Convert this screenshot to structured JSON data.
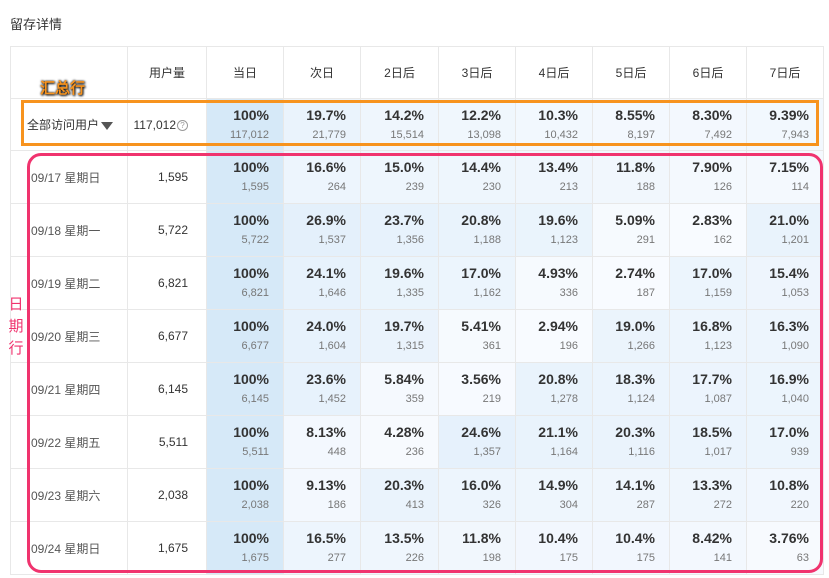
{
  "page_title": "留存详情",
  "headers": {
    "label": "",
    "users": "用户量",
    "days": [
      "当日",
      "次日",
      "2日后",
      "3日后",
      "4日后",
      "5日后",
      "6日后",
      "7日后"
    ]
  },
  "summary": {
    "label": "全部访问用户",
    "users": "117,012",
    "help_icon": "question-circle-icon",
    "dropdown_icon": "triangle-down-icon",
    "cells": [
      {
        "pct": "100%",
        "cnt": "117,012"
      },
      {
        "pct": "19.7%",
        "cnt": "21,779"
      },
      {
        "pct": "14.2%",
        "cnt": "15,514"
      },
      {
        "pct": "12.2%",
        "cnt": "13,098"
      },
      {
        "pct": "10.3%",
        "cnt": "10,432"
      },
      {
        "pct": "8.55%",
        "cnt": "8,197"
      },
      {
        "pct": "8.30%",
        "cnt": "7,492"
      },
      {
        "pct": "9.39%",
        "cnt": "7,943"
      }
    ]
  },
  "rows": [
    {
      "label": "09/17 星期日",
      "users": "1,595",
      "cells": [
        {
          "pct": "100%",
          "cnt": "1,595"
        },
        {
          "pct": "16.6%",
          "cnt": "264"
        },
        {
          "pct": "15.0%",
          "cnt": "239"
        },
        {
          "pct": "14.4%",
          "cnt": "230"
        },
        {
          "pct": "13.4%",
          "cnt": "213"
        },
        {
          "pct": "11.8%",
          "cnt": "188"
        },
        {
          "pct": "7.90%",
          "cnt": "126"
        },
        {
          "pct": "7.15%",
          "cnt": "114"
        }
      ]
    },
    {
      "label": "09/18 星期一",
      "users": "5,722",
      "cells": [
        {
          "pct": "100%",
          "cnt": "5,722"
        },
        {
          "pct": "26.9%",
          "cnt": "1,537"
        },
        {
          "pct": "23.7%",
          "cnt": "1,356"
        },
        {
          "pct": "20.8%",
          "cnt": "1,188"
        },
        {
          "pct": "19.6%",
          "cnt": "1,123"
        },
        {
          "pct": "5.09%",
          "cnt": "291"
        },
        {
          "pct": "2.83%",
          "cnt": "162"
        },
        {
          "pct": "21.0%",
          "cnt": "1,201"
        }
      ]
    },
    {
      "label": "09/19 星期二",
      "users": "6,821",
      "cells": [
        {
          "pct": "100%",
          "cnt": "6,821"
        },
        {
          "pct": "24.1%",
          "cnt": "1,646"
        },
        {
          "pct": "19.6%",
          "cnt": "1,335"
        },
        {
          "pct": "17.0%",
          "cnt": "1,162"
        },
        {
          "pct": "4.93%",
          "cnt": "336"
        },
        {
          "pct": "2.74%",
          "cnt": "187"
        },
        {
          "pct": "17.0%",
          "cnt": "1,159"
        },
        {
          "pct": "15.4%",
          "cnt": "1,053"
        }
      ]
    },
    {
      "label": "09/20 星期三",
      "users": "6,677",
      "cells": [
        {
          "pct": "100%",
          "cnt": "6,677"
        },
        {
          "pct": "24.0%",
          "cnt": "1,604"
        },
        {
          "pct": "19.7%",
          "cnt": "1,315"
        },
        {
          "pct": "5.41%",
          "cnt": "361"
        },
        {
          "pct": "2.94%",
          "cnt": "196"
        },
        {
          "pct": "19.0%",
          "cnt": "1,266"
        },
        {
          "pct": "16.8%",
          "cnt": "1,123"
        },
        {
          "pct": "16.3%",
          "cnt": "1,090"
        }
      ]
    },
    {
      "label": "09/21 星期四",
      "users": "6,145",
      "cells": [
        {
          "pct": "100%",
          "cnt": "6,145"
        },
        {
          "pct": "23.6%",
          "cnt": "1,452"
        },
        {
          "pct": "5.84%",
          "cnt": "359"
        },
        {
          "pct": "3.56%",
          "cnt": "219"
        },
        {
          "pct": "20.8%",
          "cnt": "1,278"
        },
        {
          "pct": "18.3%",
          "cnt": "1,124"
        },
        {
          "pct": "17.7%",
          "cnt": "1,087"
        },
        {
          "pct": "16.9%",
          "cnt": "1,040"
        }
      ]
    },
    {
      "label": "09/22 星期五",
      "users": "5,511",
      "cells": [
        {
          "pct": "100%",
          "cnt": "5,511"
        },
        {
          "pct": "8.13%",
          "cnt": "448"
        },
        {
          "pct": "4.28%",
          "cnt": "236"
        },
        {
          "pct": "24.6%",
          "cnt": "1,357"
        },
        {
          "pct": "21.1%",
          "cnt": "1,164"
        },
        {
          "pct": "20.3%",
          "cnt": "1,116"
        },
        {
          "pct": "18.5%",
          "cnt": "1,017"
        },
        {
          "pct": "17.0%",
          "cnt": "939"
        }
      ]
    },
    {
      "label": "09/23 星期六",
      "users": "2,038",
      "cells": [
        {
          "pct": "100%",
          "cnt": "2,038"
        },
        {
          "pct": "9.13%",
          "cnt": "186"
        },
        {
          "pct": "20.3%",
          "cnt": "413"
        },
        {
          "pct": "16.0%",
          "cnt": "326"
        },
        {
          "pct": "14.9%",
          "cnt": "304"
        },
        {
          "pct": "14.1%",
          "cnt": "287"
        },
        {
          "pct": "13.3%",
          "cnt": "272"
        },
        {
          "pct": "10.8%",
          "cnt": "220"
        }
      ]
    },
    {
      "label": "09/24 星期日",
      "users": "1,675",
      "cells": [
        {
          "pct": "100%",
          "cnt": "1,675"
        },
        {
          "pct": "16.5%",
          "cnt": "277"
        },
        {
          "pct": "13.5%",
          "cnt": "226"
        },
        {
          "pct": "11.8%",
          "cnt": "198"
        },
        {
          "pct": "10.4%",
          "cnt": "175"
        },
        {
          "pct": "10.4%",
          "cnt": "175"
        },
        {
          "pct": "8.42%",
          "cnt": "141"
        },
        {
          "pct": "3.76%",
          "cnt": "63"
        }
      ]
    }
  ],
  "annotations": {
    "summary_label": "汇总行",
    "date_label": [
      "日",
      "期",
      "行"
    ]
  },
  "colors": {
    "heat": "#d6e9f8",
    "summary_box": "#f7931e",
    "date_box": "#f0336e"
  }
}
